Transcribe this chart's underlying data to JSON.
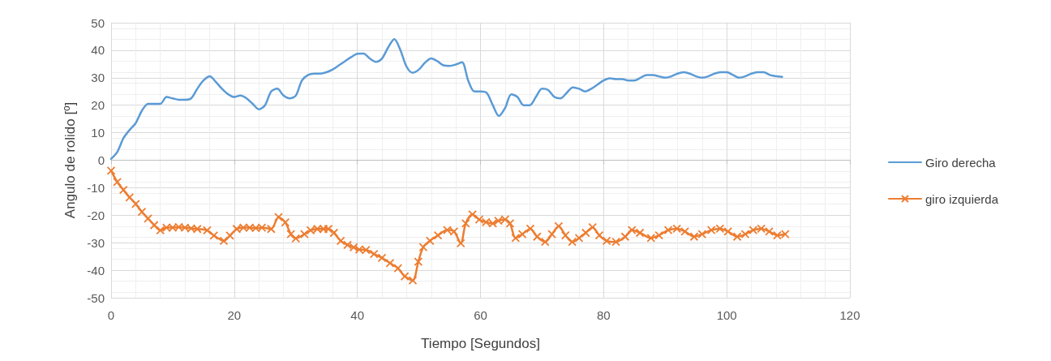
{
  "chart_data": {
    "type": "line",
    "xlabel": "Tiempo [Segundos]",
    "ylabel": "Angulo de rolido [º]",
    "xlim": [
      0,
      120
    ],
    "xticks": [
      0,
      20,
      40,
      60,
      80,
      100,
      120
    ],
    "ylim": [
      -50,
      50
    ],
    "yticks": [
      -50,
      -40,
      -30,
      -20,
      -10,
      0,
      10,
      20,
      30,
      40,
      50
    ],
    "grid": true,
    "legend": "right",
    "line_style": "solid",
    "series": [
      {
        "name": "Giro derecha",
        "color": "#5b9bd5",
        "marker": "none",
        "x": [
          0,
          1,
          2,
          3,
          4,
          5,
          6,
          7,
          8,
          9,
          10,
          11,
          12,
          13,
          14,
          15,
          16,
          17,
          18,
          19,
          20,
          21,
          22,
          23,
          24,
          25,
          26,
          27,
          28,
          29,
          30,
          31,
          32,
          33,
          34,
          35,
          36,
          37,
          38,
          39,
          40,
          41,
          42,
          43,
          44,
          45,
          46,
          47,
          48,
          49,
          50,
          51,
          52,
          53,
          54,
          55,
          56,
          57,
          58,
          59,
          60,
          61,
          62,
          63,
          64,
          65,
          66,
          67,
          68,
          69,
          70,
          71,
          72,
          73,
          74,
          75,
          76,
          77,
          78,
          79,
          80,
          81,
          82,
          83,
          84,
          85,
          86,
          87,
          88,
          89,
          90,
          91,
          92,
          93,
          94,
          95,
          96,
          97,
          98,
          99,
          100,
          101,
          102,
          103,
          104,
          105,
          106,
          107,
          108,
          109
        ],
        "values": [
          0.5,
          3,
          8,
          11,
          13.5,
          18,
          20.5,
          20.5,
          20.5,
          23,
          22.5,
          22,
          22,
          22.5,
          26,
          29,
          30.5,
          28.5,
          26,
          24,
          23,
          23.5,
          22.5,
          20.5,
          18.5,
          20,
          25,
          26,
          23.5,
          22.5,
          23.5,
          29,
          31,
          31.5,
          31.5,
          32,
          33,
          34.5,
          36,
          37.5,
          38.7,
          38.8,
          37,
          35.8,
          37,
          41,
          44,
          40,
          34,
          31.8,
          33,
          35.5,
          37,
          36,
          34.5,
          34.3,
          34.8,
          35.6,
          29,
          25,
          25,
          24.5,
          20,
          16.1,
          19,
          24,
          23,
          20,
          20,
          23,
          26,
          25.5,
          23,
          22.5,
          24.5,
          26.5,
          26,
          25,
          26,
          27.5,
          29,
          29.8,
          29.5,
          29.5,
          29,
          29,
          30,
          31,
          31,
          30.5,
          30,
          30.5,
          31.5,
          32,
          31.5,
          30.5,
          30,
          30.5,
          31.5,
          32,
          32,
          31,
          30,
          30.5,
          31.5,
          32,
          32,
          31,
          30.5,
          30.3
        ]
      },
      {
        "name": "giro izquierda",
        "color": "#ed7d31",
        "marker": "cross",
        "x": [
          0,
          1,
          2,
          3,
          4,
          5,
          6,
          7,
          8,
          9,
          10,
          11,
          12,
          13,
          14,
          15.6,
          16.7,
          18.3,
          19.3,
          20.4,
          21.5,
          22.5,
          23.5,
          24.5,
          26,
          27.2,
          28.3,
          29.2,
          30,
          31.4,
          32.4,
          33.5,
          34.5,
          35.3,
          36.2,
          37.3,
          38.4,
          39.4,
          40.3,
          41.4,
          42.7,
          44,
          45.3,
          46.6,
          47.7,
          49,
          49.9,
          50.7,
          51.8,
          53.1,
          54.6,
          55.7,
          56.8,
          57.6,
          58.7,
          59.8,
          60.9,
          62,
          62.9,
          64,
          64.8,
          65.7,
          66.8,
          68.1,
          69.2,
          70.5,
          71.6,
          72.7,
          73.8,
          74.9,
          76,
          77.1,
          78.2,
          79.3,
          80.5,
          82,
          83.5,
          84.6,
          85.9,
          87.7,
          89,
          90.5,
          91.9,
          93.2,
          94.7,
          96,
          97.5,
          98.9,
          100.2,
          101.7,
          103,
          104.3,
          105.6,
          106.9,
          108.2,
          109.5
        ],
        "values": [
          -3.8,
          -7.9,
          -10.8,
          -13.5,
          -15.9,
          -18.8,
          -21.2,
          -23.6,
          -25.5,
          -24.5,
          -24.5,
          -24.3,
          -24.5,
          -24.8,
          -25,
          -25.5,
          -27.4,
          -29.3,
          -27.4,
          -25,
          -24.5,
          -24.5,
          -24.7,
          -24.5,
          -25,
          -20.7,
          -22.6,
          -26.9,
          -28.4,
          -26.9,
          -25.5,
          -25,
          -25,
          -25,
          -26.4,
          -29.3,
          -30.8,
          -31.7,
          -32.5,
          -32.6,
          -34.1,
          -35.5,
          -37.4,
          -39.3,
          -42.2,
          -43.7,
          -36.9,
          -31.6,
          -29.3,
          -27.3,
          -25.4,
          -25.9,
          -30.2,
          -23,
          -19.7,
          -21.6,
          -22.5,
          -23,
          -22,
          -21.6,
          -23,
          -28.3,
          -26.9,
          -24.9,
          -27.8,
          -29.7,
          -26.9,
          -24,
          -27.3,
          -29.7,
          -28.3,
          -26.4,
          -24.4,
          -27.3,
          -29.3,
          -29.7,
          -27.8,
          -25.4,
          -26.4,
          -28.3,
          -27.3,
          -25.4,
          -24.9,
          -25.9,
          -27.8,
          -26.9,
          -25.4,
          -24.9,
          -25.9,
          -27.8,
          -26.9,
          -25.4,
          -24.9,
          -25.9,
          -27.3,
          -26.9
        ]
      }
    ]
  }
}
